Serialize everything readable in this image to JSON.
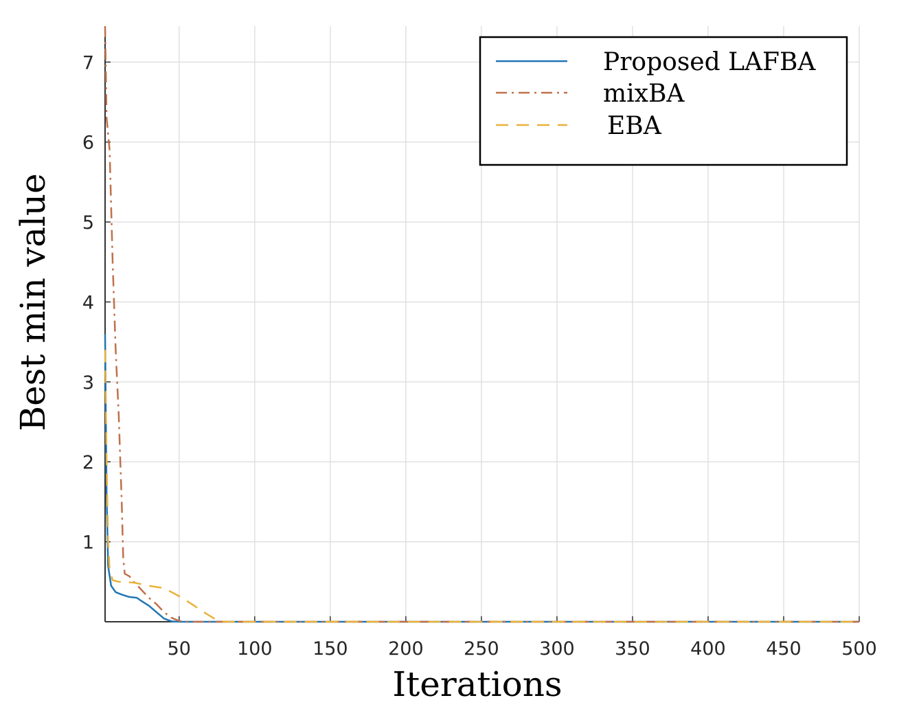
{
  "chart_data": {
    "type": "line",
    "xlabel": "Iterations",
    "ylabel": "Best min value",
    "xlim": [
      1,
      500
    ],
    "ylim": [
      0,
      7.45
    ],
    "x_ticks": [
      50,
      100,
      150,
      200,
      250,
      300,
      350,
      400,
      450,
      500
    ],
    "y_ticks": [
      1,
      2,
      3,
      4,
      5,
      6,
      7
    ],
    "grid": true,
    "legend_position": "top-right",
    "series": [
      {
        "name": "Proposed LAFBA",
        "color": "#1f77b4",
        "style": "solid",
        "points": [
          [
            1,
            3.6
          ],
          [
            2,
            1.6
          ],
          [
            3,
            0.7
          ],
          [
            5,
            0.45
          ],
          [
            8,
            0.37
          ],
          [
            12,
            0.34
          ],
          [
            17,
            0.31
          ],
          [
            22,
            0.3
          ],
          [
            25,
            0.26
          ],
          [
            30,
            0.2
          ],
          [
            35,
            0.12
          ],
          [
            40,
            0.04
          ],
          [
            45,
            0.005
          ],
          [
            50,
            0.0
          ],
          [
            500,
            0.0
          ]
        ]
      },
      {
        "name": "mixBA",
        "color": "#c0704a",
        "style": "dashdot",
        "points": [
          [
            1,
            7.45
          ],
          [
            2,
            6.3
          ],
          [
            4,
            5.9
          ],
          [
            6,
            4.5
          ],
          [
            8,
            3.4
          ],
          [
            10,
            2.6
          ],
          [
            12,
            1.5
          ],
          [
            13,
            0.8
          ],
          [
            14,
            0.6
          ],
          [
            17,
            0.57
          ],
          [
            20,
            0.5
          ],
          [
            25,
            0.4
          ],
          [
            30,
            0.3
          ],
          [
            35,
            0.22
          ],
          [
            40,
            0.12
          ],
          [
            45,
            0.05
          ],
          [
            50,
            0.01
          ],
          [
            55,
            0.0
          ],
          [
            500,
            0.0
          ]
        ]
      },
      {
        "name": "EBA",
        "color": "#e8b23a",
        "style": "dashed",
        "points": [
          [
            1,
            3.4
          ],
          [
            2,
            2.0
          ],
          [
            3,
            1.0
          ],
          [
            4,
            0.65
          ],
          [
            6,
            0.52
          ],
          [
            10,
            0.5
          ],
          [
            20,
            0.49
          ],
          [
            30,
            0.45
          ],
          [
            40,
            0.42
          ],
          [
            47,
            0.35
          ],
          [
            52,
            0.3
          ],
          [
            60,
            0.2
          ],
          [
            68,
            0.1
          ],
          [
            75,
            0.02
          ],
          [
            80,
            0.0
          ],
          [
            500,
            0.0
          ]
        ]
      }
    ]
  }
}
